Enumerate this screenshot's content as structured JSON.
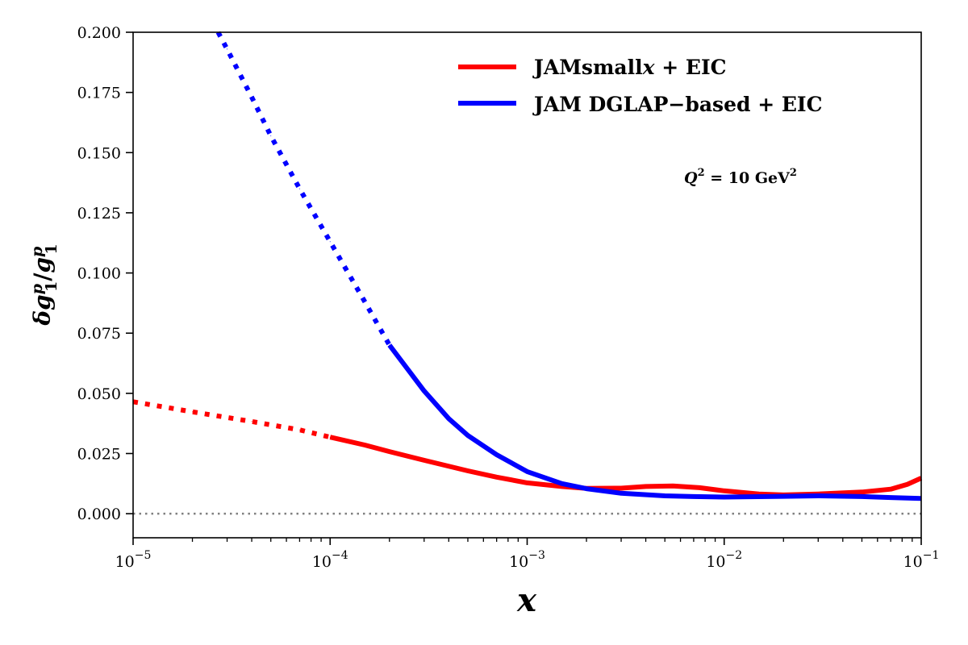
{
  "chart_data": {
    "type": "line",
    "x_scale": "log",
    "xlim": [
      1e-05,
      0.1
    ],
    "ylim": [
      -0.01,
      0.2
    ],
    "xlabel": "x",
    "ylabel_parts": {
      "delta": "δ",
      "g": "g",
      "sup": "p",
      "sub": "1",
      "slash": "/"
    },
    "x_ticks": [
      {
        "value": 1e-05,
        "base": "10",
        "exp": "−5"
      },
      {
        "value": 0.0001,
        "base": "10",
        "exp": "−4"
      },
      {
        "value": 0.001,
        "base": "10",
        "exp": "−3"
      },
      {
        "value": 0.01,
        "base": "10",
        "exp": "−2"
      },
      {
        "value": 0.1,
        "base": "10",
        "exp": "−1"
      }
    ],
    "y_ticks": [
      {
        "value": 0.0,
        "label": "0.000"
      },
      {
        "value": 0.025,
        "label": "0.025"
      },
      {
        "value": 0.05,
        "label": "0.050"
      },
      {
        "value": 0.075,
        "label": "0.075"
      },
      {
        "value": 0.1,
        "label": "0.100"
      },
      {
        "value": 0.125,
        "label": "0.125"
      },
      {
        "value": 0.15,
        "label": "0.150"
      },
      {
        "value": 0.175,
        "label": "0.175"
      },
      {
        "value": 0.2,
        "label": "0.200"
      }
    ],
    "series": [
      {
        "name": "JAMsmallx + EIC",
        "color": "#ff0000",
        "dotted_below_x": 0.0001,
        "x": [
          1e-05,
          2e-05,
          4e-05,
          7e-05,
          0.0001,
          0.00015,
          0.0002,
          0.0003,
          0.0005,
          0.0007,
          0.001,
          0.0015,
          0.002,
          0.003,
          0.004,
          0.0055,
          0.0075,
          0.01,
          0.015,
          0.02,
          0.03,
          0.05,
          0.07,
          0.085,
          0.1
        ],
        "y": [
          0.0465,
          0.0423,
          0.0383,
          0.0348,
          0.0318,
          0.0285,
          0.0258,
          0.0222,
          0.0178,
          0.0152,
          0.0128,
          0.0113,
          0.0105,
          0.0106,
          0.0113,
          0.0115,
          0.0108,
          0.0095,
          0.0082,
          0.0078,
          0.0082,
          0.009,
          0.0102,
          0.0122,
          0.0148
        ]
      },
      {
        "name": "JAM DGLAP−based + EIC",
        "color": "#0000ff",
        "dotted_below_x": 0.0002,
        "x": [
          2.7e-05,
          3e-05,
          4e-05,
          5e-05,
          7e-05,
          0.0001,
          0.00015,
          0.0002,
          0.0003,
          0.0004,
          0.0005,
          0.0007,
          0.001,
          0.0015,
          0.002,
          0.003,
          0.005,
          0.007,
          0.01,
          0.02,
          0.03,
          0.05,
          0.07,
          0.1
        ],
        "y": [
          0.2,
          0.193,
          0.173,
          0.157,
          0.135,
          0.113,
          0.088,
          0.07,
          0.051,
          0.0395,
          0.0325,
          0.0245,
          0.0175,
          0.0125,
          0.0104,
          0.0085,
          0.0074,
          0.0071,
          0.0069,
          0.0072,
          0.0074,
          0.0071,
          0.0067,
          0.0063
        ]
      }
    ],
    "reference_line": {
      "y": 0.0,
      "color": "#808080"
    },
    "legend": {
      "position": "top-right"
    },
    "annotation": {
      "prefix": "Q",
      "eq": " = 10 GeV",
      "sup": "2"
    }
  },
  "legend_labels": {
    "red_main": "JAMsmall",
    "red_italic": "x",
    "red_tail": " + EIC",
    "blue": "JAM DGLAP−based + EIC"
  }
}
